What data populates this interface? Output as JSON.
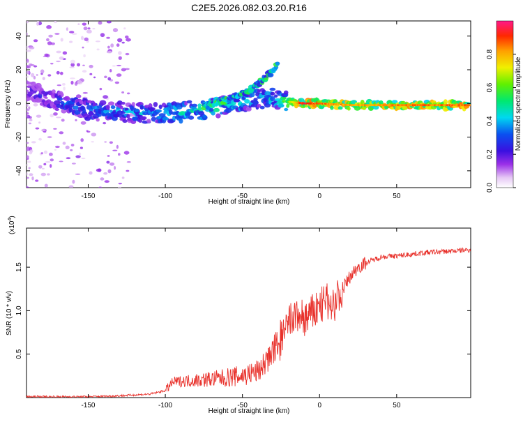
{
  "title": "C2E5.2026.082.03.20.R16",
  "chart_data": [
    {
      "type": "heatmap",
      "title": "C2E5.2026.082.03.20.R16",
      "xlabel": "Height of straight line (km)",
      "ylabel": "Frequency (Hz)",
      "xlim": [
        -190,
        98
      ],
      "ylim": [
        -50,
        49
      ],
      "xticks": [
        -150,
        -100,
        -50,
        0,
        50
      ],
      "yticks": [
        -40,
        -20,
        0,
        20,
        40
      ],
      "colorbar": {
        "label": "Normalized spectral amplitude",
        "range": [
          0,
          1
        ],
        "ticks": [
          0.0,
          0.2,
          0.4,
          0.6,
          0.8
        ],
        "tick_labels": [
          "0.0",
          "0.2",
          "0.4",
          "0.6",
          "0.8"
        ]
      },
      "ridge": {
        "x": [
          -190,
          -170,
          -150,
          -130,
          -110,
          -90,
          -70,
          -55,
          -45,
          -38,
          -30,
          -20,
          -10,
          0,
          20,
          50,
          98
        ],
        "y": [
          8,
          1,
          -4,
          -5,
          -6,
          -5,
          -3,
          0,
          2,
          3,
          3,
          1,
          0,
          0,
          -1,
          -1,
          -1
        ],
        "amplitude": [
          0.25,
          0.35,
          0.4,
          0.42,
          0.45,
          0.5,
          0.55,
          0.5,
          0.45,
          0.45,
          0.5,
          0.65,
          0.95,
          0.85,
          0.8,
          0.85,
          0.85
        ]
      },
      "upper_branch": {
        "x": [
          -75,
          -65,
          -55,
          -45,
          -38,
          -32,
          -27
        ],
        "y": [
          -2,
          1,
          4,
          8,
          13,
          18,
          24
        ]
      }
    },
    {
      "type": "line",
      "xlabel": "Height of straight line (km)",
      "ylabel": "SNR (10 * v/v)",
      "y_multiplier": "(x10",
      "y_multiplier_exp": "4",
      "xlim": [
        -190,
        98
      ],
      "ylim": [
        0,
        1.95
      ],
      "xticks": [
        -150,
        -100,
        -50,
        0,
        50
      ],
      "yticks": [
        0.5,
        1.0,
        1.5
      ],
      "ytick_labels": [
        "0.5",
        "1.0",
        "1.5"
      ],
      "color": "#e8302a",
      "series": [
        {
          "name": "SNR",
          "x": [
            -190,
            -150,
            -130,
            -110,
            -100,
            -95,
            -80,
            -65,
            -50,
            -40,
            -33,
            -25,
            -20,
            -18,
            -13,
            -10,
            -6,
            -3,
            0,
            5,
            10,
            15,
            20,
            25,
            30,
            40,
            50,
            60,
            70,
            80,
            90,
            98
          ],
          "y": [
            0.01,
            0.01,
            0.02,
            0.04,
            0.08,
            0.18,
            0.2,
            0.22,
            0.25,
            0.3,
            0.45,
            0.65,
            0.85,
            0.9,
            0.95,
            0.9,
            0.95,
            1.0,
            1.05,
            1.1,
            1.1,
            1.25,
            1.4,
            1.5,
            1.55,
            1.62,
            1.63,
            1.65,
            1.67,
            1.68,
            1.69,
            1.7
          ]
        }
      ]
    }
  ]
}
